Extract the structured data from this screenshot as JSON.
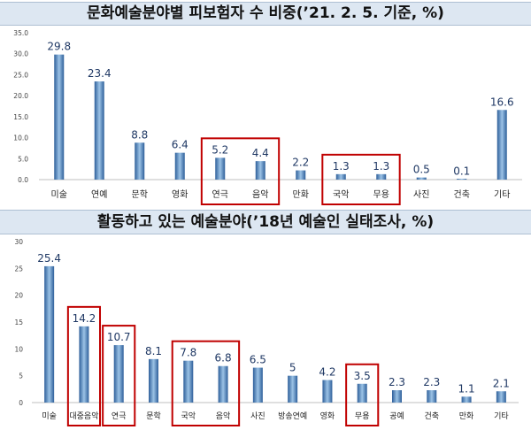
{
  "chart_data": [
    {
      "type": "bar",
      "title": "문화예술분야별 피보험자 수 비중(’21. 2. 5. 기준, %)",
      "categories": [
        "미술",
        "연예",
        "문학",
        "영화",
        "연극",
        "음악",
        "만화",
        "국악",
        "무용",
        "사진",
        "건축",
        "기타"
      ],
      "values": [
        29.8,
        23.4,
        8.8,
        6.4,
        5.2,
        4.4,
        2.2,
        1.3,
        1.3,
        0.5,
        0.1,
        16.6
      ],
      "value_labels": [
        "29.8",
        "23.4",
        "8.8",
        "6.4",
        "5.2",
        "4.4",
        "2.2",
        "1.3",
        "1.3",
        "0.5",
        "0.1",
        "16.6"
      ],
      "yticks": [
        "0.0",
        "5.0",
        "10.0",
        "15.0",
        "20.0",
        "25.0",
        "30.0",
        "35.0"
      ],
      "ylim": [
        0,
        35
      ],
      "highlighted": [
        [
          "연극",
          "음악"
        ],
        [
          "국악",
          "무용"
        ]
      ],
      "grid": false,
      "legend": "none"
    },
    {
      "type": "bar",
      "title": "활동하고 있는 예술분야(’18년 예술인 실태조사, %)",
      "categories": [
        "미술",
        "대중음악",
        "연극",
        "문학",
        "국악",
        "음악",
        "사진",
        "방송연예",
        "영화",
        "무용",
        "공예",
        "건축",
        "만화",
        "기타"
      ],
      "values": [
        25.4,
        14.2,
        10.7,
        8.1,
        7.8,
        6.8,
        6.5,
        5,
        4.2,
        3.5,
        2.3,
        2.3,
        1.1,
        2.1
      ],
      "value_labels": [
        "25.4",
        "14.2",
        "10.7",
        "8.1",
        "7.8",
        "6.8",
        "6.5",
        "5",
        "4.2",
        "3.5",
        "2.3",
        "2.3",
        "1.1",
        "2.1"
      ],
      "yticks": [
        "0",
        "5",
        "10",
        "15",
        "20",
        "25",
        "30"
      ],
      "ylim": [
        0,
        30
      ],
      "highlighted": [
        [
          "대중음악"
        ],
        [
          "연극"
        ],
        [
          "국악",
          "음악"
        ],
        [
          "무용"
        ]
      ],
      "grid": false,
      "legend": "none"
    }
  ],
  "colors": {
    "bar_light": "#9cc3e6",
    "bar_dark": "#2e5f9a",
    "highlight_box": "#c00000",
    "title_background": "#dde7f2",
    "data_label": "#1f3864"
  }
}
